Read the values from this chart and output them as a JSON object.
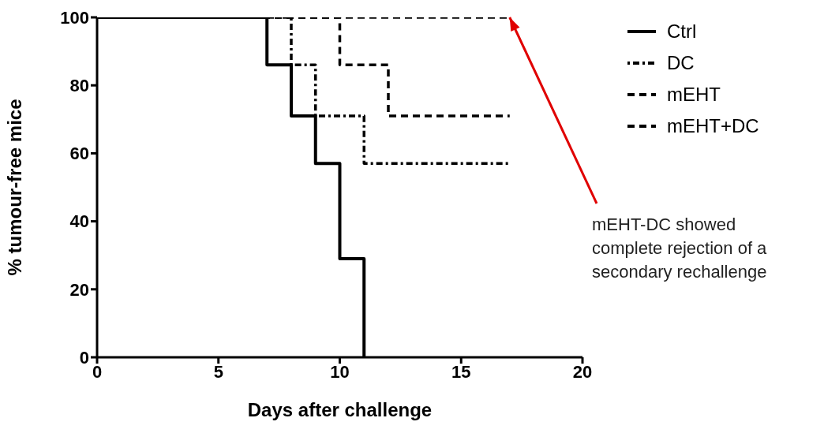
{
  "chart_data": {
    "type": "step",
    "xlabel": "Days after challenge",
    "ylabel": "% tumour-free mice",
    "xlim": [
      0,
      20
    ],
    "xticks": [
      0,
      5,
      10,
      15,
      20
    ],
    "ylim": [
      0,
      100
    ],
    "yticks": [
      0,
      20,
      40,
      60,
      80,
      100
    ],
    "grid": false,
    "legend": "right",
    "marker": "none",
    "series": [
      {
        "name": "Ctrl",
        "color": "#000000",
        "line_style": "solid",
        "x": [
          0,
          7,
          8,
          9,
          10,
          11
        ],
        "values": [
          100,
          86,
          71,
          57,
          29,
          0
        ]
      },
      {
        "name": "DC",
        "color": "#000000",
        "line_style": "dotted",
        "x": [
          0,
          8,
          9,
          11,
          17
        ],
        "values": [
          100,
          86,
          71,
          57,
          57
        ]
      },
      {
        "name": "mEHT",
        "color": "#000000",
        "line_style": "dashed",
        "x": [
          0,
          10,
          12,
          17
        ],
        "values": [
          100,
          86,
          71,
          71
        ]
      },
      {
        "name": "mEHT+DC",
        "color": "#000000",
        "line_style": "dashed",
        "x": [
          0,
          17
        ],
        "values": [
          100,
          100
        ]
      }
    ],
    "annotations": [
      {
        "text": "mEHT-DC showed complete rejection of a secondary rechallenge",
        "x": 17,
        "y": 100
      }
    ]
  }
}
